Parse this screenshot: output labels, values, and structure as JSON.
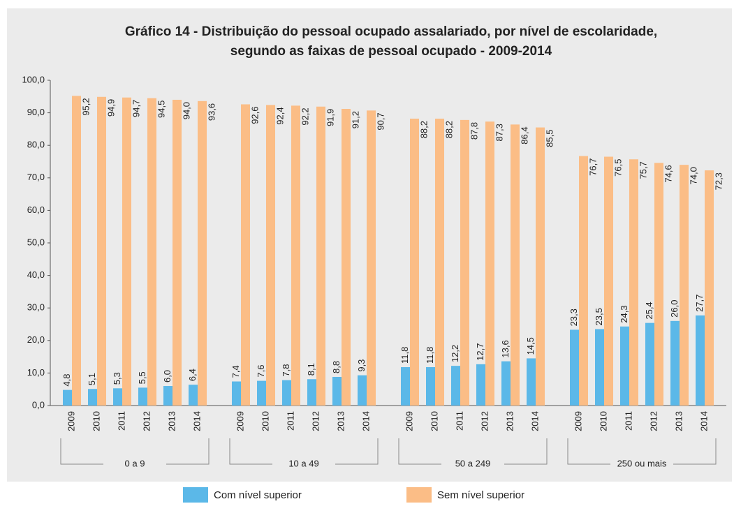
{
  "chart_data": {
    "type": "bar",
    "title": [
      "Gráfico 14 - Distribuição do pessoal ocupado assalariado, por nível de escolaridade,",
      "segundo as faixas de pessoal ocupado - 2009-2014"
    ],
    "groups": [
      "0 a 9",
      "10 a 49",
      "50 a 249",
      "250 ou mais"
    ],
    "categories": [
      "2009",
      "2010",
      "2011",
      "2012",
      "2013",
      "2014",
      "2009",
      "2010",
      "2011",
      "2012",
      "2013",
      "2014",
      "2009",
      "2010",
      "2011",
      "2012",
      "2013",
      "2014",
      "2009",
      "2010",
      "2011",
      "2012",
      "2013",
      "2014"
    ],
    "series": [
      {
        "name": "Com nível superior",
        "color": "#5bb8e8",
        "values": [
          4.8,
          5.1,
          5.3,
          5.5,
          6.0,
          6.4,
          7.4,
          7.6,
          7.8,
          8.1,
          8.8,
          9.3,
          11.8,
          11.8,
          12.2,
          12.7,
          13.6,
          14.5,
          23.3,
          23.5,
          24.3,
          25.4,
          26.0,
          27.7
        ],
        "value_labels": [
          "4,8",
          "5,1",
          "5,3",
          "5,5",
          "6,0",
          "6,4",
          "7,4",
          "7,6",
          "7,8",
          "8,1",
          "8,8",
          "9,3",
          "11,8",
          "11,8",
          "12,2",
          "12,7",
          "13,6",
          "14,5",
          "23,3",
          "23,5",
          "24,3",
          "25,4",
          "26,0",
          "27,7"
        ]
      },
      {
        "name": "Sem nível superior",
        "color": "#fbbd86",
        "values": [
          95.2,
          94.9,
          94.7,
          94.5,
          94.0,
          93.6,
          92.6,
          92.4,
          92.2,
          91.9,
          91.2,
          90.7,
          88.2,
          88.2,
          87.8,
          87.3,
          86.4,
          85.5,
          76.7,
          76.5,
          75.7,
          74.6,
          74.0,
          72.3
        ],
        "value_labels": [
          "95,2",
          "94,9",
          "94,7",
          "94,5",
          "94,0",
          "93,6",
          "92,6",
          "92,4",
          "92,2",
          "91,9",
          "91,2",
          "90,7",
          "88,2",
          "88,2",
          "87,8",
          "87,3",
          "86,4",
          "85,5",
          "76,7",
          "76,5",
          "75,7",
          "74,6",
          "74,0",
          "72,3"
        ]
      }
    ],
    "ylim": [
      0,
      100
    ],
    "yticks": [
      {
        "value": 0,
        "label": "0,0"
      },
      {
        "value": 10,
        "label": "10,0"
      },
      {
        "value": 20,
        "label": "20,0"
      },
      {
        "value": 30,
        "label": "30,0"
      },
      {
        "value": 40,
        "label": "40,0"
      },
      {
        "value": 50,
        "label": "50,0"
      },
      {
        "value": 60,
        "label": "60,0"
      },
      {
        "value": 70,
        "label": "70,0"
      },
      {
        "value": 80,
        "label": "80,0"
      },
      {
        "value": 90,
        "label": "90,0"
      },
      {
        "value": 100,
        "label": "100,0"
      }
    ]
  }
}
